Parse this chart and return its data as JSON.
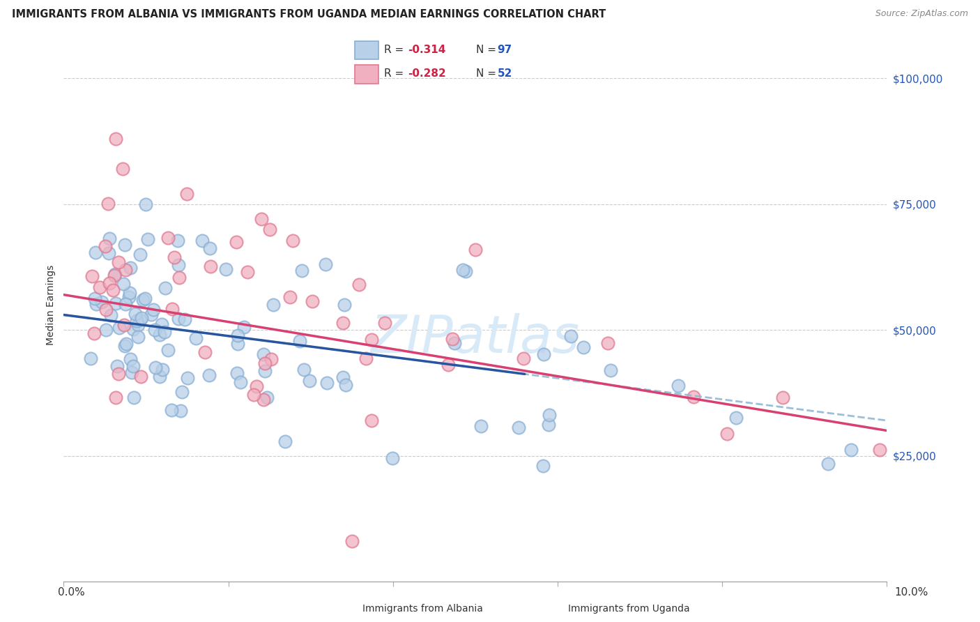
{
  "title": "IMMIGRANTS FROM ALBANIA VS IMMIGRANTS FROM UGANDA MEDIAN EARNINGS CORRELATION CHART",
  "source": "Source: ZipAtlas.com",
  "ylabel": "Median Earnings",
  "yticks": [
    25000,
    50000,
    75000,
    100000
  ],
  "ytick_labels": [
    "$25,000",
    "$50,000",
    "$75,000",
    "$100,000"
  ],
  "xlim": [
    0.0,
    0.1
  ],
  "ylim": [
    0,
    110000
  ],
  "albania_color": "#b8d0e8",
  "albania_edge": "#88aed4",
  "uganda_color": "#f0b0c0",
  "uganda_edge": "#e07890",
  "trend_albania_solid_color": "#2855a0",
  "trend_albania_dashed_color": "#90b8d8",
  "trend_uganda_color": "#d84070",
  "watermark_color": "#d8eaf8",
  "background_color": "#ffffff",
  "title_fontsize": 11,
  "source_fontsize": 9,
  "r_value_color": "#cc2244",
  "n_value_color": "#2255bb",
  "ytick_color": "#2255bb",
  "albania_r": -0.314,
  "albania_n": 97,
  "uganda_r": -0.282,
  "uganda_n": 52
}
